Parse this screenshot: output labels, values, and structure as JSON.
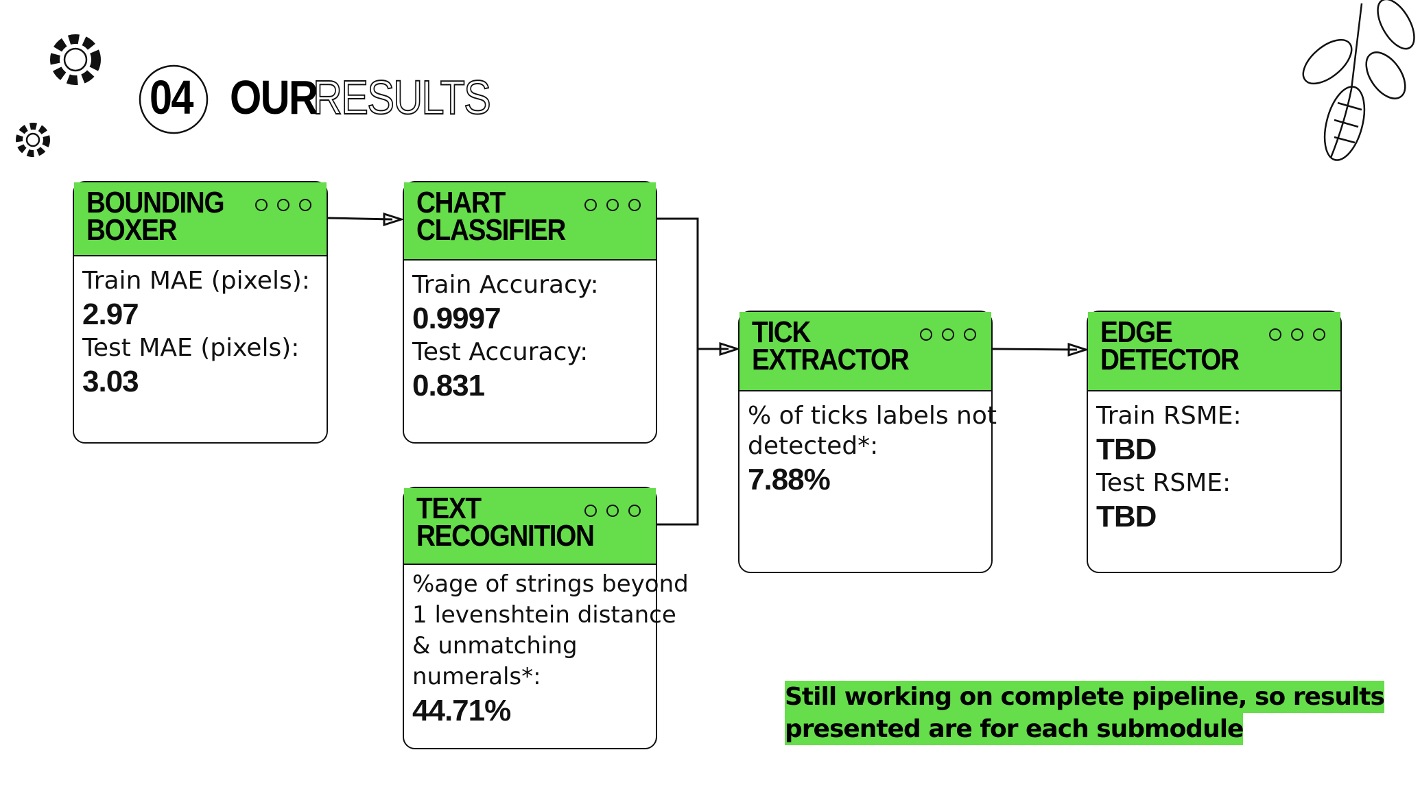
{
  "header": {
    "number": "04",
    "title_bold": "OUR",
    "title_outline": "RESULTS"
  },
  "nodes": [
    {
      "title_lines": [
        "BOUNDING",
        "BOXER"
      ],
      "body": [
        {
          "text": "Train MAE (pixels):",
          "bold": false
        },
        {
          "text": "2.97",
          "bold": true
        },
        {
          "text": "Test MAE (pixels):",
          "bold": false
        },
        {
          "text": "3.03",
          "bold": true
        }
      ]
    },
    {
      "title_lines": [
        "CHART",
        "CLASSIFIER"
      ],
      "body": [
        {
          "text": "Train Accuracy:",
          "bold": false
        },
        {
          "text": "0.9997",
          "bold": true
        },
        {
          "text": "Test Accuracy:",
          "bold": false
        },
        {
          "text": "0.831",
          "bold": true
        }
      ]
    },
    {
      "title_lines": [
        "TEXT",
        "RECOGNITION"
      ],
      "body": [
        {
          "text": "%age of strings beyond",
          "bold": false
        },
        {
          "text": "1 levenshtein distance",
          "bold": false
        },
        {
          "text": "& unmatching",
          "bold": false
        },
        {
          "text": "numerals*:",
          "bold": false
        },
        {
          "text": "44.71%",
          "bold": true
        }
      ]
    },
    {
      "title_lines": [
        "TICK",
        "EXTRACTOR"
      ],
      "body": [
        {
          "text": "% of ticks labels not",
          "bold": false
        },
        {
          "text": "detected*:",
          "bold": false
        },
        {
          "text": "7.88%",
          "bold": true
        }
      ]
    },
    {
      "title_lines": [
        "EDGE",
        "DETECTOR"
      ],
      "body": [
        {
          "text": "Train RSME:",
          "bold": false
        },
        {
          "text": "TBD",
          "bold": true
        },
        {
          "text": "Test RSME:",
          "bold": false
        },
        {
          "text": "TBD",
          "bold": true
        }
      ]
    }
  ],
  "note": {
    "lines": [
      "Still working on complete pipeline, so results",
      "presented are for each submodule"
    ]
  }
}
